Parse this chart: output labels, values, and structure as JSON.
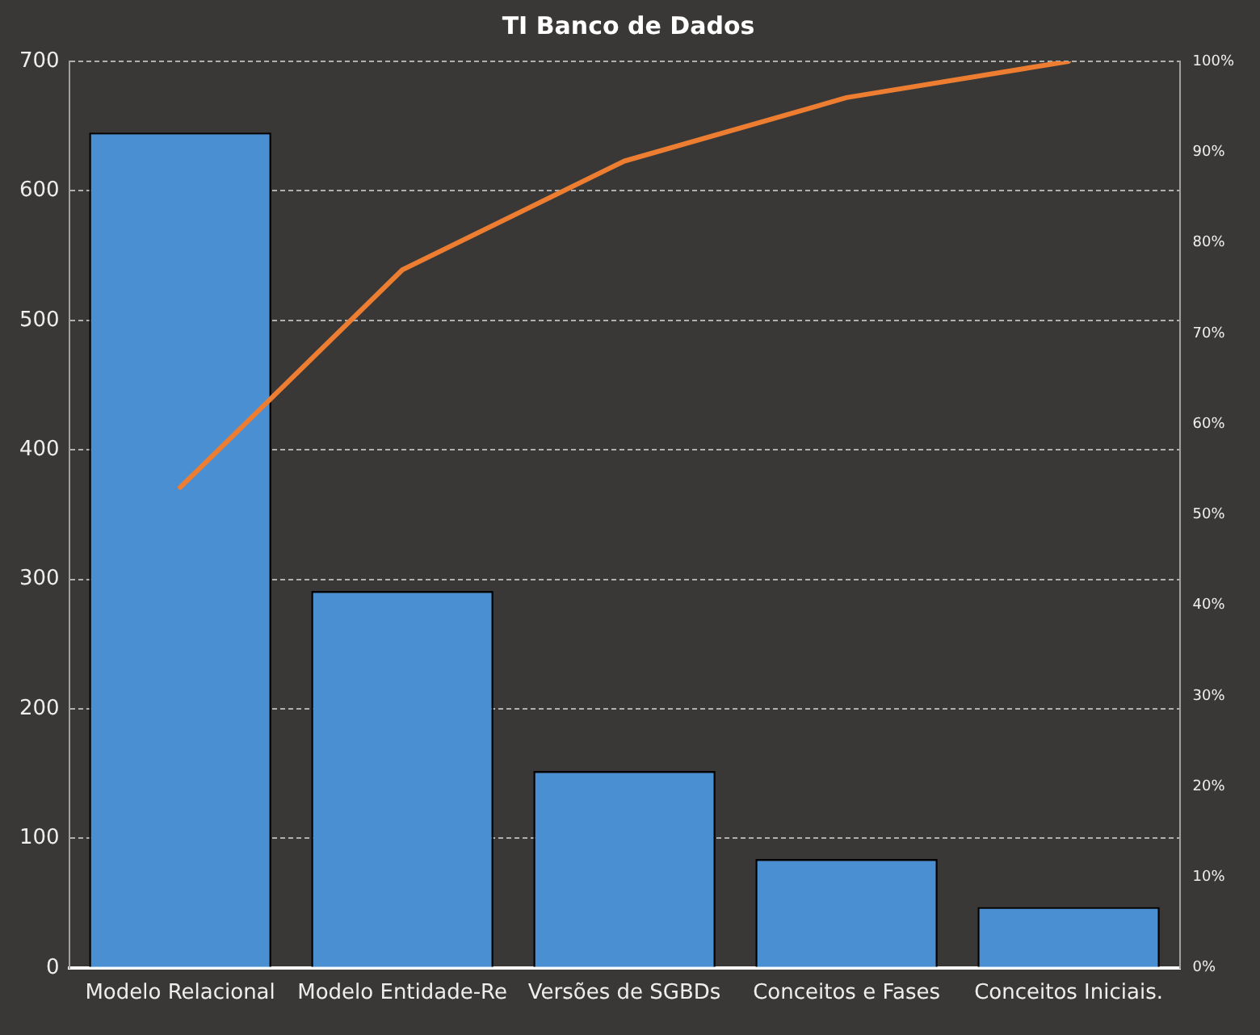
{
  "chart_data": {
    "type": "bar",
    "title": "TI Banco de Dados",
    "categories": [
      "Modelo Relacional",
      "Modelo Entidade-Re",
      "Versões de SGBDs",
      "Conceitos e Fases",
      "Conceitos Iniciais."
    ],
    "series": [
      {
        "color": "#4a8fd2",
        "values": [
          645,
          291,
          152,
          84,
          47
        ]
      },
      {
        "type": "line",
        "axis": "y2",
        "color": "#ed7d31",
        "values": [
          53,
          77,
          89,
          96,
          100
        ]
      }
    ],
    "ylim": [
      0,
      700
    ],
    "yticks": [
      0,
      100,
      200,
      300,
      400,
      500,
      600,
      700
    ],
    "y2lim": [
      0,
      100
    ],
    "y2ticks": [
      {
        "value": 0,
        "label": "0%"
      },
      {
        "value": 10,
        "label": "10%"
      },
      {
        "value": 20,
        "label": "20%"
      },
      {
        "value": 30,
        "label": "30%"
      },
      {
        "value": 40,
        "label": "40%"
      },
      {
        "value": 50,
        "label": "50%"
      },
      {
        "value": 60,
        "label": "60%"
      },
      {
        "value": 70,
        "label": "70%"
      },
      {
        "value": 80,
        "label": "80%"
      },
      {
        "value": 90,
        "label": "90%"
      },
      {
        "value": 100,
        "label": "100%"
      }
    ],
    "grid": "y",
    "marker": "none",
    "line_style": "solid"
  }
}
